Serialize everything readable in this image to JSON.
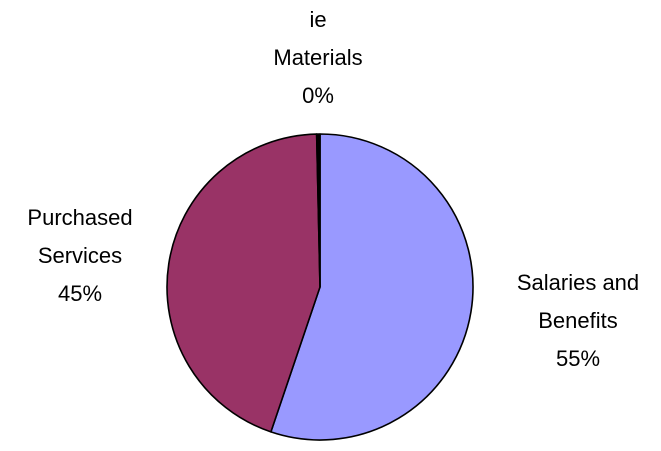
{
  "chart_data": {
    "type": "pie",
    "slices": [
      {
        "label_lines": [
          "Salaries and",
          "Benefits"
        ],
        "percent_label": "55%",
        "value": 55.2,
        "color": "#9999FF"
      },
      {
        "label_lines": [
          "Purchased",
          "Services"
        ],
        "percent_label": "45%",
        "value": 44.45,
        "color": "#993366"
      },
      {
        "label_lines": [
          "ie",
          "Materials"
        ],
        "percent_label": "0%",
        "value": 0.35,
        "color": "#000000"
      }
    ],
    "start_angle_deg": 0,
    "direction": "clockwise",
    "outline_color": "#000000"
  }
}
